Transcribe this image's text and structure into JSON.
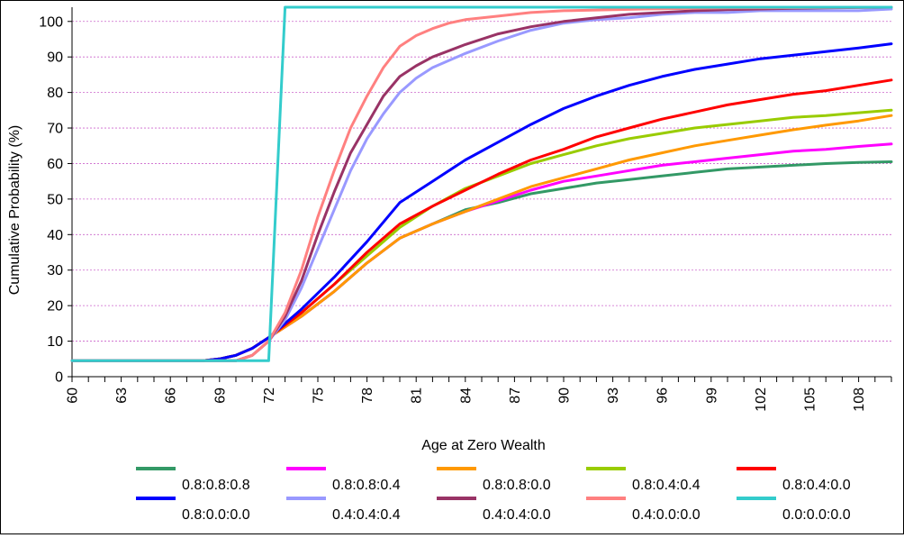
{
  "chart_data": {
    "type": "line",
    "title": "",
    "xlabel": "Age at Zero Wealth",
    "ylabel": "Cumulative Probability (%)",
    "xlim": [
      60,
      110
    ],
    "ylim": [
      0,
      104
    ],
    "yticks": [
      0,
      10,
      20,
      30,
      40,
      50,
      60,
      70,
      80,
      90,
      100
    ],
    "xtick_labels": [
      60,
      63,
      66,
      69,
      72,
      75,
      78,
      81,
      84,
      87,
      90,
      93,
      96,
      99,
      102,
      105,
      108
    ],
    "grid": "horizontal dashed",
    "legend_position": "bottom",
    "series": [
      {
        "name": "0.8:0.8:0.8",
        "color": "#339966",
        "points": [
          [
            60,
            4.5
          ],
          [
            68,
            4.5
          ],
          [
            69,
            5
          ],
          [
            70,
            6
          ],
          [
            71,
            8
          ],
          [
            72,
            11
          ],
          [
            74,
            17
          ],
          [
            76,
            24
          ],
          [
            78,
            32
          ],
          [
            80,
            39
          ],
          [
            82,
            43
          ],
          [
            84,
            47
          ],
          [
            86,
            49
          ],
          [
            88,
            51.5
          ],
          [
            90,
            53
          ],
          [
            92,
            54.5
          ],
          [
            94,
            55.5
          ],
          [
            96,
            56.5
          ],
          [
            98,
            57.5
          ],
          [
            100,
            58.5
          ],
          [
            102,
            59
          ],
          [
            104,
            59.5
          ],
          [
            106,
            60
          ],
          [
            108,
            60.3
          ],
          [
            110,
            60.5
          ]
        ]
      },
      {
        "name": "0.8:0.8:0.4",
        "color": "#ff00ff",
        "points": [
          [
            60,
            4.5
          ],
          [
            68,
            4.5
          ],
          [
            69,
            5
          ],
          [
            70,
            6
          ],
          [
            71,
            8
          ],
          [
            72,
            11
          ],
          [
            74,
            17
          ],
          [
            76,
            24
          ],
          [
            78,
            32
          ],
          [
            80,
            39
          ],
          [
            82,
            43
          ],
          [
            84,
            46.5
          ],
          [
            86,
            49.5
          ],
          [
            88,
            52.5
          ],
          [
            90,
            55
          ],
          [
            92,
            56.5
          ],
          [
            94,
            58
          ],
          [
            96,
            59.5
          ],
          [
            98,
            60.5
          ],
          [
            100,
            61.5
          ],
          [
            102,
            62.5
          ],
          [
            104,
            63.5
          ],
          [
            106,
            64
          ],
          [
            108,
            64.8
          ],
          [
            110,
            65.5
          ]
        ]
      },
      {
        "name": "0.8:0.8:0.0",
        "color": "#ff9900",
        "points": [
          [
            60,
            4.5
          ],
          [
            68,
            4.5
          ],
          [
            69,
            5
          ],
          [
            70,
            6
          ],
          [
            71,
            8
          ],
          [
            72,
            11
          ],
          [
            74,
            17
          ],
          [
            76,
            24
          ],
          [
            78,
            32
          ],
          [
            80,
            39
          ],
          [
            82,
            43
          ],
          [
            84,
            46.5
          ],
          [
            86,
            50
          ],
          [
            88,
            53.5
          ],
          [
            90,
            56
          ],
          [
            92,
            58.5
          ],
          [
            94,
            61
          ],
          [
            96,
            63
          ],
          [
            98,
            65
          ],
          [
            100,
            66.5
          ],
          [
            102,
            68
          ],
          [
            104,
            69.5
          ],
          [
            106,
            70.8
          ],
          [
            108,
            72
          ],
          [
            110,
            73.5
          ]
        ]
      },
      {
        "name": "0.8:0.4:0.4",
        "color": "#99cc00",
        "points": [
          [
            60,
            4.5
          ],
          [
            68,
            4.5
          ],
          [
            69,
            5
          ],
          [
            70,
            6
          ],
          [
            71,
            8
          ],
          [
            72,
            11
          ],
          [
            74,
            18
          ],
          [
            76,
            26
          ],
          [
            78,
            34
          ],
          [
            80,
            42
          ],
          [
            82,
            48
          ],
          [
            84,
            53
          ],
          [
            86,
            56.5
          ],
          [
            88,
            60
          ],
          [
            90,
            62.5
          ],
          [
            92,
            65
          ],
          [
            94,
            67
          ],
          [
            96,
            68.5
          ],
          [
            98,
            70
          ],
          [
            100,
            71
          ],
          [
            102,
            72
          ],
          [
            104,
            73
          ],
          [
            106,
            73.5
          ],
          [
            108,
            74.3
          ],
          [
            110,
            75
          ]
        ]
      },
      {
        "name": "0.8:0.4:0.0",
        "color": "#ff0000",
        "points": [
          [
            60,
            4.5
          ],
          [
            68,
            4.5
          ],
          [
            69,
            5
          ],
          [
            70,
            6
          ],
          [
            71,
            8
          ],
          [
            72,
            11
          ],
          [
            74,
            18
          ],
          [
            76,
            26
          ],
          [
            78,
            35
          ],
          [
            80,
            43
          ],
          [
            82,
            48
          ],
          [
            84,
            52.5
          ],
          [
            86,
            57
          ],
          [
            88,
            61
          ],
          [
            90,
            64
          ],
          [
            92,
            67.5
          ],
          [
            94,
            70
          ],
          [
            96,
            72.5
          ],
          [
            98,
            74.5
          ],
          [
            100,
            76.5
          ],
          [
            102,
            78
          ],
          [
            104,
            79.5
          ],
          [
            106,
            80.5
          ],
          [
            108,
            82
          ],
          [
            110,
            83.5
          ]
        ]
      },
      {
        "name": "0.8:0.0:0.0",
        "color": "#0000ff",
        "points": [
          [
            60,
            4.5
          ],
          [
            68,
            4.5
          ],
          [
            69,
            5
          ],
          [
            70,
            6
          ],
          [
            71,
            8
          ],
          [
            72,
            11
          ],
          [
            74,
            19
          ],
          [
            76,
            28
          ],
          [
            78,
            38
          ],
          [
            80,
            49
          ],
          [
            82,
            55
          ],
          [
            84,
            61
          ],
          [
            86,
            66
          ],
          [
            88,
            71
          ],
          [
            90,
            75.5
          ],
          [
            92,
            79
          ],
          [
            94,
            82
          ],
          [
            96,
            84.5
          ],
          [
            98,
            86.5
          ],
          [
            100,
            88
          ],
          [
            102,
            89.5
          ],
          [
            104,
            90.5
          ],
          [
            106,
            91.5
          ],
          [
            108,
            92.5
          ],
          [
            110,
            93.7
          ]
        ]
      },
      {
        "name": "0.4:0.4:0.4",
        "color": "#9999ff",
        "points": [
          [
            60,
            4.5
          ],
          [
            69,
            4.5
          ],
          [
            70,
            4.5
          ],
          [
            71,
            6
          ],
          [
            72,
            10
          ],
          [
            73,
            16
          ],
          [
            74,
            25
          ],
          [
            75,
            36
          ],
          [
            76,
            47
          ],
          [
            77,
            58
          ],
          [
            78,
            67
          ],
          [
            79,
            74
          ],
          [
            80,
            80
          ],
          [
            81,
            84
          ],
          [
            82,
            87
          ],
          [
            84,
            91
          ],
          [
            86,
            94.5
          ],
          [
            88,
            97.5
          ],
          [
            90,
            99.5
          ],
          [
            92,
            100.5
          ],
          [
            94,
            101
          ],
          [
            96,
            102
          ],
          [
            98,
            102.5
          ],
          [
            100,
            102.5
          ],
          [
            102,
            103
          ],
          [
            104,
            103
          ],
          [
            106,
            103
          ],
          [
            108,
            103
          ],
          [
            110,
            103.5
          ]
        ]
      },
      {
        "name": "0.4:0.4:0.0",
        "color": "#993366",
        "points": [
          [
            60,
            4.5
          ],
          [
            69,
            4.5
          ],
          [
            70,
            4.5
          ],
          [
            71,
            6
          ],
          [
            72,
            10
          ],
          [
            73,
            17
          ],
          [
            74,
            27
          ],
          [
            75,
            40
          ],
          [
            76,
            52
          ],
          [
            77,
            63
          ],
          [
            78,
            71
          ],
          [
            79,
            79
          ],
          [
            80,
            84.5
          ],
          [
            81,
            87.5
          ],
          [
            82,
            90
          ],
          [
            84,
            93.5
          ],
          [
            86,
            96.5
          ],
          [
            88,
            98.5
          ],
          [
            90,
            100
          ],
          [
            92,
            101
          ],
          [
            94,
            102
          ],
          [
            96,
            102.5
          ],
          [
            98,
            103
          ],
          [
            100,
            103.3
          ],
          [
            102,
            103.5
          ],
          [
            104,
            103.7
          ],
          [
            106,
            103.8
          ],
          [
            108,
            103.9
          ],
          [
            110,
            104
          ]
        ]
      },
      {
        "name": "0.4:0.0:0.0",
        "color": "#ff8080",
        "points": [
          [
            60,
            4.5
          ],
          [
            69,
            4.5
          ],
          [
            70,
            4.5
          ],
          [
            71,
            6
          ],
          [
            72,
            10
          ],
          [
            73,
            18
          ],
          [
            74,
            30
          ],
          [
            75,
            45
          ],
          [
            76,
            58
          ],
          [
            77,
            70
          ],
          [
            78,
            79
          ],
          [
            79,
            87
          ],
          [
            80,
            93
          ],
          [
            81,
            96
          ],
          [
            82,
            98
          ],
          [
            83,
            99.5
          ],
          [
            84,
            100.5
          ],
          [
            86,
            101.5
          ],
          [
            88,
            102.5
          ],
          [
            90,
            103
          ],
          [
            95,
            103.5
          ],
          [
            100,
            103.8
          ],
          [
            110,
            104
          ]
        ]
      },
      {
        "name": "0.0:0.0:0.0",
        "color": "#33cccc",
        "points": [
          [
            60,
            4.5
          ],
          [
            72,
            4.5
          ],
          [
            73,
            104
          ],
          [
            110,
            104
          ]
        ]
      }
    ]
  }
}
